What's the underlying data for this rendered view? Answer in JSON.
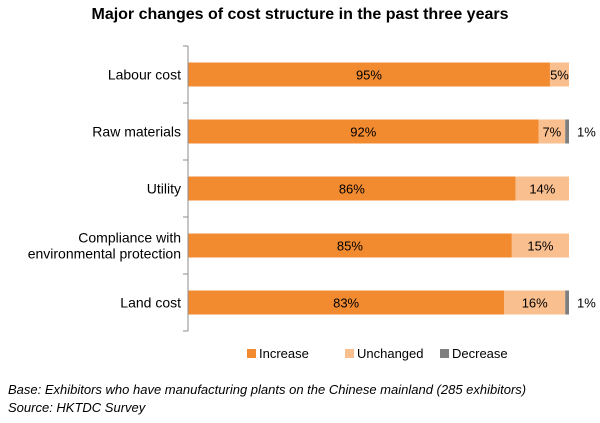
{
  "chart_data": {
    "type": "bar",
    "orientation": "horizontal",
    "stacked": true,
    "title": "Major changes of cost structure in the past three years",
    "categories": [
      "Labour cost",
      "Raw materials",
      "Utility",
      "Compliance with environmental protection",
      "Land cost"
    ],
    "category_lines": [
      [
        "Labour cost"
      ],
      [
        "Raw materials"
      ],
      [
        "Utility"
      ],
      [
        "Compliance with",
        "environmental protection"
      ],
      [
        "Land cost"
      ]
    ],
    "series": [
      {
        "name": "Increase",
        "color": "#F28A30",
        "values": [
          95,
          92,
          86,
          85,
          83
        ],
        "labels": [
          "95%",
          "92%",
          "86%",
          "85%",
          "83%"
        ]
      },
      {
        "name": "Unchanged",
        "color": "#F9BF8F",
        "values": [
          5,
          7,
          14,
          15,
          16
        ],
        "labels": [
          "5%",
          "7%",
          "14%",
          "15%",
          "16%"
        ]
      },
      {
        "name": "Decrease",
        "color": "#7F7F7F",
        "values": [
          0,
          1,
          0,
          0,
          1
        ],
        "labels": [
          "",
          "1%",
          "",
          "",
          "1%"
        ]
      }
    ],
    "xlim": [
      0,
      100
    ],
    "grid": false,
    "legend_position": "bottom"
  },
  "notes": {
    "base": "Base: Exhibitors who have manufacturing plants on the Chinese mainland (285 exhibitors)",
    "source": "Source: HKTDC Survey"
  }
}
